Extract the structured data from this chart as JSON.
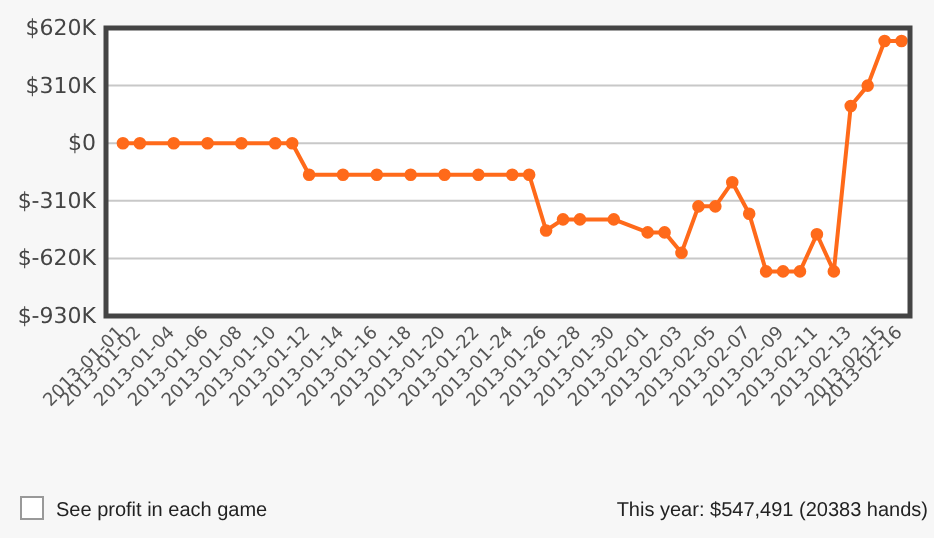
{
  "chart_data": {
    "type": "line",
    "x": [
      "2013-01-01",
      "2013-01-02",
      "2013-01-04",
      "2013-01-06",
      "2013-01-08",
      "2013-01-10",
      "2013-01-11",
      "2013-01-12",
      "2013-01-14",
      "2013-01-16",
      "2013-01-18",
      "2013-01-20",
      "2013-01-22",
      "2013-01-24",
      "2013-01-25",
      "2013-01-26",
      "2013-01-27",
      "2013-01-28",
      "2013-01-30",
      "2013-02-01",
      "2013-02-02",
      "2013-02-03",
      "2013-02-04",
      "2013-02-05",
      "2013-02-06",
      "2013-02-07",
      "2013-02-08",
      "2013-02-09",
      "2013-02-10",
      "2013-02-11",
      "2013-02-12",
      "2013-02-13",
      "2013-02-14",
      "2013-02-15",
      "2013-02-16"
    ],
    "series": [
      {
        "color": "#ff6a1a",
        "values": [
          0,
          0,
          0,
          0,
          0,
          0,
          0,
          -170,
          -170,
          -170,
          -170,
          -170,
          -170,
          -170,
          -170,
          -470,
          -410,
          -410,
          -410,
          -480,
          -480,
          -590,
          -340,
          -340,
          -210,
          -380,
          -690,
          -690,
          -690,
          -490,
          -690,
          200,
          310,
          550,
          550
        ]
      }
    ],
    "xlim": [
      "2012-12-31",
      "2013-02-16T12:00"
    ],
    "xticks": [
      {
        "value": "2013-01-01",
        "label": "2013-01-01"
      },
      {
        "value": "2013-01-02",
        "label": "2013-01-02"
      },
      {
        "value": "2013-01-04",
        "label": "2013-01-04"
      },
      {
        "value": "2013-01-06",
        "label": "2013-01-06"
      },
      {
        "value": "2013-01-08",
        "label": "2013-01-08"
      },
      {
        "value": "2013-01-10",
        "label": "2013-01-10"
      },
      {
        "value": "2013-01-12",
        "label": "2013-01-12"
      },
      {
        "value": "2013-01-14",
        "label": "2013-01-14"
      },
      {
        "value": "2013-01-16",
        "label": "2013-01-16"
      },
      {
        "value": "2013-01-18",
        "label": "2013-01-18"
      },
      {
        "value": "2013-01-20",
        "label": "2013-01-20"
      },
      {
        "value": "2013-01-22",
        "label": "2013-01-22"
      },
      {
        "value": "2013-01-24",
        "label": "2013-01-24"
      },
      {
        "value": "2013-01-26",
        "label": "2013-01-26"
      },
      {
        "value": "2013-01-28",
        "label": "2013-01-28"
      },
      {
        "value": "2013-01-30",
        "label": "2013-01-30"
      },
      {
        "value": "2013-02-01",
        "label": "2013-02-01"
      },
      {
        "value": "2013-02-03",
        "label": "2013-02-03"
      },
      {
        "value": "2013-02-05",
        "label": "2013-02-05"
      },
      {
        "value": "2013-02-07",
        "label": "2013-02-07"
      },
      {
        "value": "2013-02-09",
        "label": "2013-02-09"
      },
      {
        "value": "2013-02-11",
        "label": "2013-02-11"
      },
      {
        "value": "2013-02-13",
        "label": "2013-02-13"
      },
      {
        "value": "2013-02-15",
        "label": "2013-02-15"
      },
      {
        "value": "2013-02-16",
        "label": "2013-02-16"
      }
    ],
    "ylim": [
      -930,
      620
    ],
    "yticks": [
      {
        "value": 620,
        "label": "$620K"
      },
      {
        "value": 310,
        "label": "$310K"
      },
      {
        "value": 0,
        "label": "$0"
      },
      {
        "value": -310,
        "label": "$-310K"
      },
      {
        "value": -620,
        "label": "$-620K"
      },
      {
        "value": -930,
        "label": "$-930K"
      }
    ],
    "grid": "y",
    "marker": "circle",
    "annotations": [
      "See profit in each game",
      "This year: $547,491 (20383 hands)"
    ]
  }
}
